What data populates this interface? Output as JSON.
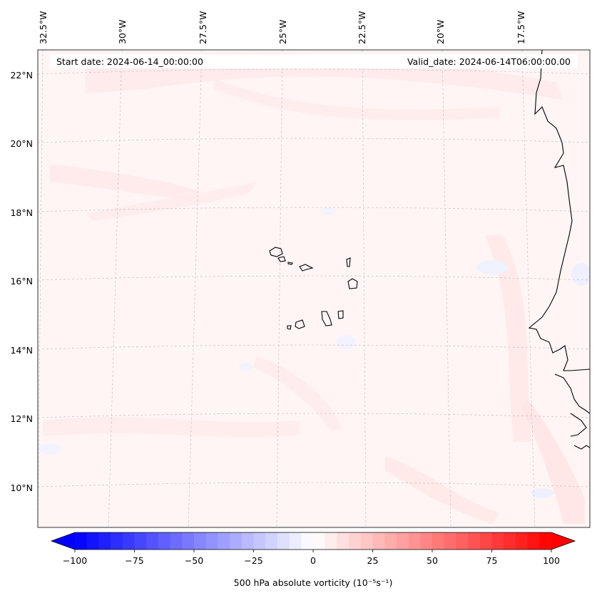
{
  "map": {
    "start_date": "Start date: 2024-06-14_00:00:00",
    "valid_date": "Valid_date: 2024-06-14T06:00:00.00",
    "lon_labels": [
      "32.5°W",
      "30°W",
      "27.5°W",
      "25°W",
      "22.5°W",
      "20°W",
      "17.5°W"
    ],
    "lat_labels": [
      "22°N",
      "20°N",
      "18°N",
      "16°N",
      "14°N",
      "12°N",
      "10°N"
    ],
    "gridlines": true,
    "features": [
      "Cabo Verde islands",
      "West African coastline"
    ]
  },
  "colorbar": {
    "label": "500 hPa absolute vorticity (10⁻⁵s⁻¹)",
    "ticks": [
      "−100",
      "−75",
      "−50",
      "−25",
      "0",
      "25",
      "50",
      "75",
      "100"
    ],
    "min": -100,
    "max": 100,
    "levels": 41,
    "colormap": "bwr",
    "extend": "both",
    "low_color": "#0000ff",
    "mid_color": "#ffffff",
    "high_color": "#ff0000"
  }
}
